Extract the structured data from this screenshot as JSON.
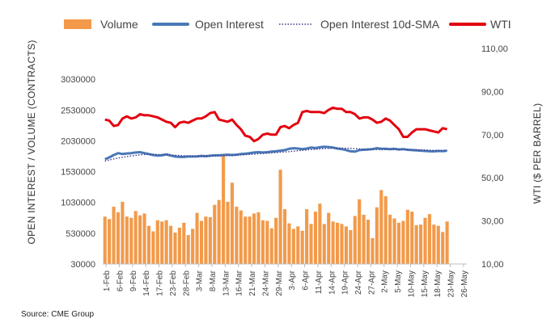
{
  "chart_data": {
    "type": "bar+line",
    "legend": [
      {
        "key": "volume",
        "label": "Volume",
        "color": "#F29A4A"
      },
      {
        "key": "oi",
        "label": "Open Interest",
        "color": "#4A78B8"
      },
      {
        "key": "sma",
        "label": "Open Interest 10d-SMA",
        "color": "#3B3B8C"
      },
      {
        "key": "wti",
        "label": "WTI",
        "color": "#E3000F"
      }
    ],
    "ylabel_left": "OPEN INTEREST / VOLUME (CONTRACTS)",
    "ylabel_right": "WTI ($ PER BARREL)",
    "y_left_ticks": [
      "30000",
      "530000",
      "1030000",
      "1530000",
      "2030000",
      "2530000",
      "3030000"
    ],
    "y_left_range": [
      30000,
      3530000
    ],
    "y_right_ticks": [
      "10,00",
      "30,00",
      "50,00",
      "70,00",
      "90,00",
      "110,00"
    ],
    "y_right_range": [
      10,
      110
    ],
    "x_ticks": [
      "1-Feb",
      "6-Feb",
      "9-Feb",
      "14-Feb",
      "17-Feb",
      "23-Feb",
      "28-Feb",
      "3-Mar",
      "8-Mar",
      "13-Mar",
      "16-Mar",
      "21-Mar",
      "24-Mar",
      "29-Mar",
      "3-Apr",
      "6-Apr",
      "11-Apr",
      "14-Apr",
      "19-Apr",
      "24-Apr",
      "27-Apr",
      "2-May",
      "5-May",
      "10-May",
      "15-May",
      "18-May",
      "23-May",
      "26-May"
    ],
    "volume": [
      800000,
      760000,
      960000,
      870000,
      1040000,
      800000,
      780000,
      890000,
      820000,
      850000,
      650000,
      560000,
      740000,
      720000,
      740000,
      650000,
      540000,
      620000,
      700000,
      500000,
      600000,
      860000,
      730000,
      800000,
      790000,
      990000,
      1070000,
      1820000,
      1040000,
      1350000,
      960000,
      900000,
      800000,
      800000,
      850000,
      870000,
      740000,
      730000,
      610000,
      780000,
      1560000,
      920000,
      690000,
      600000,
      640000,
      570000,
      920000,
      680000,
      880000,
      1010000,
      680000,
      860000,
      720000,
      700000,
      680000,
      640000,
      580000,
      810000,
      1080000,
      830000,
      750000,
      450000,
      950000,
      1230000,
      1130000,
      830000,
      770000,
      700000,
      730000,
      910000,
      880000,
      660000,
      670000,
      780000,
      840000,
      670000,
      650000,
      550000,
      720000
    ],
    "open_interest": [
      1730000,
      1760000,
      1800000,
      1830000,
      1815000,
      1825000,
      1830000,
      1840000,
      1845000,
      1830000,
      1815000,
      1800000,
      1790000,
      1795000,
      1810000,
      1790000,
      1775000,
      1768000,
      1768000,
      1775000,
      1775000,
      1778000,
      1785000,
      1780000,
      1788000,
      1795000,
      1795000,
      1800000,
      1805000,
      1800000,
      1805000,
      1815000,
      1820000,
      1830000,
      1840000,
      1845000,
      1840000,
      1845000,
      1855000,
      1860000,
      1870000,
      1880000,
      1900000,
      1910000,
      1905000,
      1895000,
      1905000,
      1920000,
      1912000,
      1925000,
      1935000,
      1930000,
      1920000,
      1905000,
      1895000,
      1880000,
      1860000,
      1855000,
      1880000,
      1885000,
      1890000,
      1895000,
      1910000,
      1900000,
      1902000,
      1895000,
      1900000,
      1890000,
      1895000,
      1885000,
      1880000,
      1875000,
      1870000,
      1865000,
      1860000,
      1858000,
      1865000,
      1862000,
      1870000
    ],
    "open_interest_sma": [
      1700000,
      1720000,
      1735000,
      1750000,
      1762000,
      1775000,
      1785000,
      1795000,
      1802000,
      1808000,
      1810000,
      1810000,
      1808000,
      1806000,
      1804000,
      1800000,
      1796000,
      1792000,
      1788000,
      1785000,
      1783000,
      1781000,
      1780000,
      1780000,
      1781000,
      1783000,
      1786000,
      1789000,
      1792000,
      1795000,
      1798000,
      1801000,
      1805000,
      1809000,
      1814000,
      1819000,
      1824000,
      1829000,
      1834000,
      1839000,
      1844000,
      1849000,
      1855000,
      1862000,
      1869000,
      1876000,
      1882000,
      1888000,
      1893000,
      1898000,
      1903000,
      1907000,
      1910000,
      1912000,
      1912000,
      1910000,
      1907000,
      1903000,
      1899000,
      1895000,
      1892000,
      1890000,
      1889000,
      1889000,
      1889000,
      1889000,
      1889000,
      1888000,
      1887000,
      1886000,
      1885000,
      1883000,
      1881000,
      1879000,
      1877000,
      1875000,
      1873000,
      1872000,
      1871000
    ],
    "wti": [
      77.0,
      76.5,
      74.0,
      74.5,
      77.5,
      78.5,
      77.5,
      78.0,
      79.5,
      79.0,
      79.0,
      78.5,
      78.0,
      77.0,
      76.0,
      75.5,
      73.5,
      75.5,
      76.0,
      75.5,
      76.5,
      77.5,
      77.5,
      78.5,
      80.0,
      80.5,
      77.0,
      76.5,
      76.0,
      77.0,
      74.5,
      72.5,
      69.5,
      69.0,
      67.0,
      68.0,
      70.0,
      70.5,
      70.0,
      70.0,
      73.5,
      74.0,
      73.0,
      74.5,
      75.5,
      80.5,
      81.0,
      80.5,
      80.5,
      80.5,
      80.0,
      81.5,
      82.5,
      82.0,
      82.0,
      80.5,
      80.5,
      79.5,
      77.5,
      78.0,
      78.0,
      77.0,
      75.5,
      76.0,
      77.5,
      76.5,
      74.5,
      72.5,
      69.0,
      69.0,
      71.0,
      72.5,
      72.5,
      72.5,
      72.0,
      71.5,
      71.0,
      73.0,
      72.5
    ]
  },
  "source": "Source: CME Group"
}
